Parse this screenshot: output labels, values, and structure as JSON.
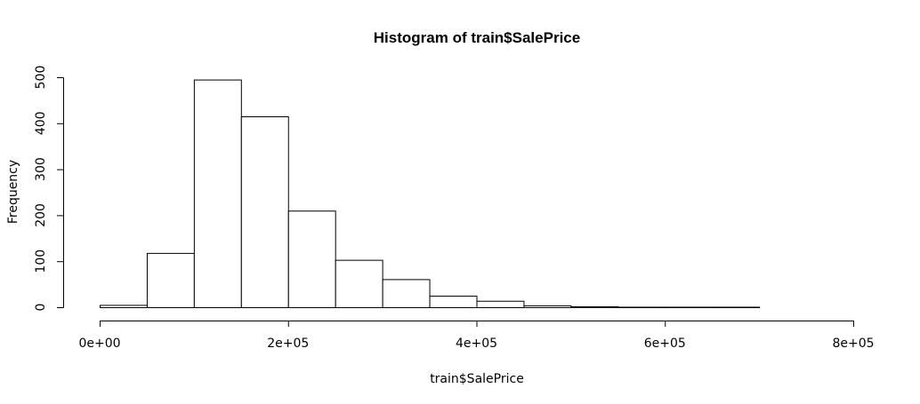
{
  "chart_data": {
    "type": "bar",
    "title": "Histogram of train$SalePrice",
    "xlabel": "train$SalePrice",
    "ylabel": "Frequency",
    "bin_edges": [
      0,
      50000,
      100000,
      150000,
      200000,
      250000,
      300000,
      350000,
      400000,
      450000,
      500000,
      550000,
      600000,
      650000,
      700000,
      750000,
      800000
    ],
    "values": [
      5,
      118,
      495,
      415,
      210,
      103,
      61,
      25,
      14,
      4,
      2,
      1,
      1,
      1,
      0,
      0
    ],
    "xlim": [
      0,
      800000
    ],
    "ylim": [
      0,
      500
    ],
    "x_ticks": [
      {
        "value": 0,
        "label": "0e+00"
      },
      {
        "value": 200000,
        "label": "2e+05"
      },
      {
        "value": 400000,
        "label": "4e+05"
      },
      {
        "value": 600000,
        "label": "6e+05"
      },
      {
        "value": 800000,
        "label": "8e+05"
      }
    ],
    "y_ticks": [
      {
        "value": 0,
        "label": "0"
      },
      {
        "value": 100,
        "label": "100"
      },
      {
        "value": 200,
        "label": "200"
      },
      {
        "value": 300,
        "label": "300"
      },
      {
        "value": 400,
        "label": "400"
      },
      {
        "value": 500,
        "label": "500"
      }
    ],
    "grid": false,
    "bar_fill": "#ffffff",
    "bar_stroke": "#000000"
  }
}
